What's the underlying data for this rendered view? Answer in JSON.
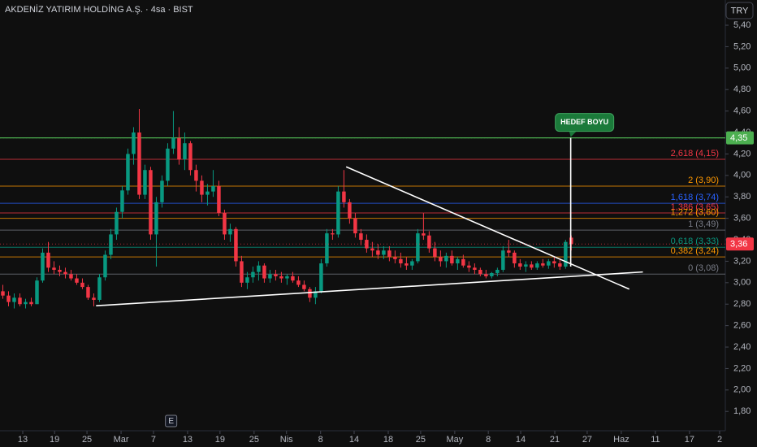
{
  "chart_data": {
    "type": "candlestick",
    "title": "AKDENİZ YATIRIM HOLDİNG A.Ş. · 4sa · BIST",
    "currency": "TRY",
    "up_color": "#089981",
    "down_color": "#f23645",
    "ylim": [
      1.62,
      5.635
    ],
    "yticks": [
      {
        "value": 1.8,
        "label": "1,80"
      },
      {
        "value": 2.0,
        "label": "2,00"
      },
      {
        "value": 2.2,
        "label": "2,20"
      },
      {
        "value": 2.4,
        "label": "2,40"
      },
      {
        "value": 2.6,
        "label": "2,60"
      },
      {
        "value": 2.8,
        "label": "2,80"
      },
      {
        "value": 3.0,
        "label": "3,00"
      },
      {
        "value": 3.2,
        "label": "3,20"
      },
      {
        "value": 3.4,
        "label": "3,40"
      },
      {
        "value": 3.6,
        "label": "3,60"
      },
      {
        "value": 3.8,
        "label": "3,80"
      },
      {
        "value": 4.0,
        "label": "4,00"
      },
      {
        "value": 4.2,
        "label": "4,20"
      },
      {
        "value": 4.4,
        "label": "4,40"
      },
      {
        "value": 4.6,
        "label": "4,60"
      },
      {
        "value": 4.8,
        "label": "4,80"
      },
      {
        "value": 5.0,
        "label": "5,00"
      },
      {
        "value": 5.2,
        "label": "5,20"
      },
      {
        "value": 5.4,
        "label": "5,40"
      }
    ],
    "xlim": [
      -0.5,
      127.1
    ],
    "xticks": [
      {
        "value": 3.5,
        "label": "13"
      },
      {
        "value": 9.1,
        "label": "19"
      },
      {
        "value": 14.8,
        "label": "25"
      },
      {
        "value": 20.8,
        "label": "Mar"
      },
      {
        "value": 26.5,
        "label": "7"
      },
      {
        "value": 32.5,
        "label": "13"
      },
      {
        "value": 38.2,
        "label": "19"
      },
      {
        "value": 44.2,
        "label": "25"
      },
      {
        "value": 49.9,
        "label": "Nis"
      },
      {
        "value": 55.9,
        "label": "8"
      },
      {
        "value": 61.8,
        "label": "14"
      },
      {
        "value": 67.8,
        "label": "18"
      },
      {
        "value": 73.5,
        "label": "25"
      },
      {
        "value": 79.5,
        "label": "May"
      },
      {
        "value": 85.4,
        "label": "8"
      },
      {
        "value": 91.1,
        "label": "14"
      },
      {
        "value": 97.1,
        "label": "21"
      },
      {
        "value": 102.8,
        "label": "27"
      },
      {
        "value": 108.8,
        "label": "Haz"
      },
      {
        "value": 114.8,
        "label": "11"
      },
      {
        "value": 120.8,
        "label": "17"
      },
      {
        "value": 126.1,
        "label": "2"
      }
    ],
    "ohlc": [
      [
        2.92,
        2.98,
        2.85,
        2.88
      ],
      [
        2.88,
        2.92,
        2.78,
        2.82
      ],
      [
        2.82,
        2.9,
        2.76,
        2.86
      ],
      [
        2.86,
        2.9,
        2.78,
        2.8
      ],
      [
        2.8,
        2.85,
        2.76,
        2.82
      ],
      [
        2.82,
        2.86,
        2.78,
        2.8
      ],
      [
        2.8,
        3.05,
        2.8,
        3.02
      ],
      [
        3.02,
        3.32,
        3.0,
        3.28
      ],
      [
        3.28,
        3.38,
        3.1,
        3.14
      ],
      [
        3.14,
        3.2,
        3.08,
        3.12
      ],
      [
        3.12,
        3.16,
        3.06,
        3.1
      ],
      [
        3.1,
        3.14,
        3.04,
        3.08
      ],
      [
        3.08,
        3.12,
        3.02,
        3.04
      ],
      [
        3.04,
        3.08,
        2.98,
        3.0
      ],
      [
        3.0,
        3.04,
        2.94,
        2.96
      ],
      [
        2.96,
        2.98,
        2.84,
        2.86
      ],
      [
        2.86,
        2.9,
        2.78,
        2.84
      ],
      [
        2.84,
        3.08,
        2.82,
        3.05
      ],
      [
        3.05,
        3.3,
        3.02,
        3.26
      ],
      [
        3.26,
        3.5,
        3.22,
        3.45
      ],
      [
        3.45,
        3.7,
        3.4,
        3.66
      ],
      [
        3.66,
        3.9,
        3.6,
        3.86
      ],
      [
        3.86,
        4.25,
        3.82,
        4.2
      ],
      [
        4.2,
        4.45,
        4.1,
        4.4
      ],
      [
        4.4,
        4.62,
        3.78,
        3.82
      ],
      [
        3.82,
        4.1,
        3.78,
        4.05
      ],
      [
        4.05,
        4.08,
        3.4,
        3.45
      ],
      [
        3.45,
        3.8,
        3.15,
        3.75
      ],
      [
        3.75,
        4.0,
        3.7,
        3.95
      ],
      [
        3.95,
        4.3,
        3.9,
        4.25
      ],
      [
        4.25,
        4.6,
        4.2,
        4.35
      ],
      [
        4.35,
        4.45,
        4.1,
        4.15
      ],
      [
        4.15,
        4.4,
        4.05,
        4.3
      ],
      [
        4.3,
        4.32,
        4.0,
        4.05
      ],
      [
        4.05,
        4.1,
        3.85,
        3.95
      ],
      [
        3.95,
        4.0,
        3.75,
        3.82
      ],
      [
        3.82,
        3.92,
        3.72,
        3.85
      ],
      [
        3.85,
        4.05,
        3.8,
        3.9
      ],
      [
        3.9,
        3.95,
        3.62,
        3.65
      ],
      [
        3.65,
        3.68,
        3.4,
        3.45
      ],
      [
        3.45,
        3.55,
        3.38,
        3.5
      ],
      [
        3.5,
        3.52,
        3.15,
        3.2
      ],
      [
        3.2,
        3.25,
        2.96,
        3.0
      ],
      [
        3.0,
        3.1,
        2.94,
        3.05
      ],
      [
        3.05,
        3.15,
        3.0,
        3.1
      ],
      [
        3.1,
        3.2,
        3.02,
        3.16
      ],
      [
        3.16,
        3.18,
        3.0,
        3.04
      ],
      [
        3.04,
        3.12,
        3.0,
        3.08
      ],
      [
        3.08,
        3.12,
        3.02,
        3.06
      ],
      [
        3.06,
        3.1,
        3.0,
        3.04
      ],
      [
        3.04,
        3.08,
        2.98,
        3.06
      ],
      [
        3.06,
        3.1,
        3.0,
        3.02
      ],
      [
        3.02,
        3.06,
        2.96,
        2.98
      ],
      [
        2.98,
        3.02,
        2.92,
        2.94
      ],
      [
        2.94,
        2.96,
        2.82,
        2.86
      ],
      [
        2.86,
        2.96,
        2.8,
        2.92
      ],
      [
        2.92,
        3.22,
        2.9,
        3.18
      ],
      [
        3.18,
        3.5,
        3.15,
        3.46
      ],
      [
        3.46,
        3.5,
        3.4,
        3.45
      ],
      [
        3.45,
        3.9,
        3.42,
        3.85
      ],
      [
        3.85,
        4.05,
        3.7,
        3.75
      ],
      [
        3.75,
        3.78,
        3.55,
        3.6
      ],
      [
        3.6,
        3.65,
        3.42,
        3.46
      ],
      [
        3.46,
        3.5,
        3.35,
        3.4
      ],
      [
        3.4,
        3.45,
        3.28,
        3.32
      ],
      [
        3.32,
        3.38,
        3.24,
        3.3
      ],
      [
        3.3,
        3.36,
        3.22,
        3.26
      ],
      [
        3.26,
        3.34,
        3.22,
        3.3
      ],
      [
        3.3,
        3.34,
        3.2,
        3.24
      ],
      [
        3.24,
        3.3,
        3.18,
        3.22
      ],
      [
        3.22,
        3.28,
        3.14,
        3.18
      ],
      [
        3.18,
        3.24,
        3.12,
        3.16
      ],
      [
        3.16,
        3.22,
        3.12,
        3.2
      ],
      [
        3.2,
        3.5,
        3.18,
        3.46
      ],
      [
        3.46,
        3.65,
        3.4,
        3.44
      ],
      [
        3.44,
        3.48,
        3.28,
        3.32
      ],
      [
        3.32,
        3.38,
        3.2,
        3.24
      ],
      [
        3.24,
        3.3,
        3.15,
        3.2
      ],
      [
        3.2,
        3.28,
        3.14,
        3.25
      ],
      [
        3.25,
        3.3,
        3.16,
        3.18
      ],
      [
        3.18,
        3.24,
        3.12,
        3.22
      ],
      [
        3.22,
        3.26,
        3.14,
        3.16
      ],
      [
        3.16,
        3.2,
        3.1,
        3.14
      ],
      [
        3.14,
        3.18,
        3.08,
        3.12
      ],
      [
        3.12,
        3.14,
        3.06,
        3.08
      ],
      [
        3.08,
        3.12,
        3.04,
        3.06
      ],
      [
        3.06,
        3.1,
        3.04,
        3.09
      ],
      [
        3.09,
        3.14,
        3.06,
        3.12
      ],
      [
        3.12,
        3.34,
        3.1,
        3.3
      ],
      [
        3.3,
        3.4,
        3.24,
        3.28
      ],
      [
        3.28,
        3.3,
        3.14,
        3.18
      ],
      [
        3.18,
        3.22,
        3.12,
        3.15
      ],
      [
        3.15,
        3.2,
        3.1,
        3.17
      ],
      [
        3.17,
        3.2,
        3.12,
        3.14
      ],
      [
        3.14,
        3.2,
        3.12,
        3.18
      ],
      [
        3.18,
        3.22,
        3.14,
        3.16
      ],
      [
        3.16,
        3.22,
        3.13,
        3.2
      ],
      [
        3.2,
        3.24,
        3.14,
        3.18
      ],
      [
        3.18,
        3.22,
        3.12,
        3.15
      ],
      [
        3.15,
        3.4,
        3.13,
        3.38
      ],
      [
        3.42,
        3.44,
        3.3,
        3.36
      ]
    ],
    "hlines": [
      {
        "value": 4.35,
        "color": "#4caf50"
      }
    ],
    "fib_levels": [
      {
        "value": 4.15,
        "label": "2,618 (4,15)",
        "color": "#f23645"
      },
      {
        "value": 3.9,
        "label": "2 (3,90)",
        "color": "#ff9800"
      },
      {
        "value": 3.74,
        "label": "1,618 (3,74)",
        "color": "#2962ff"
      },
      {
        "value": 3.65,
        "label": "1,386 (3,65)",
        "color": "#f23645"
      },
      {
        "value": 3.6,
        "label": "1,272 (3,60)",
        "color": "#ff9800"
      },
      {
        "value": 3.49,
        "label": "1 (3,49)",
        "color": "#787b86"
      },
      {
        "value": 3.33,
        "label": "0,618 (3,33)",
        "color": "#089981"
      },
      {
        "value": 3.24,
        "label": "0,382 (3,24)",
        "color": "#ff9800"
      },
      {
        "value": 3.08,
        "label": "0 (3,08)",
        "color": "#787b86"
      }
    ],
    "trendlines": [
      {
        "points": [
          [
            16.4,
            2.785
          ],
          [
            112.6,
            3.1
          ]
        ]
      },
      {
        "points": [
          [
            60.4,
            4.08
          ],
          [
            110.2,
            2.94
          ]
        ]
      },
      {
        "points": [
          [
            99.9,
            4.35
          ],
          [
            99.9,
            3.15
          ]
        ],
        "label": "HEDEF BOYU"
      }
    ],
    "price_badges": [
      {
        "value": 4.35,
        "label": "4,35",
        "color": "#4caf50"
      },
      {
        "value": 3.36,
        "label": "3,36",
        "color": "#f23645"
      }
    ],
    "events": [
      {
        "x": 29.6,
        "label": "E"
      }
    ]
  }
}
